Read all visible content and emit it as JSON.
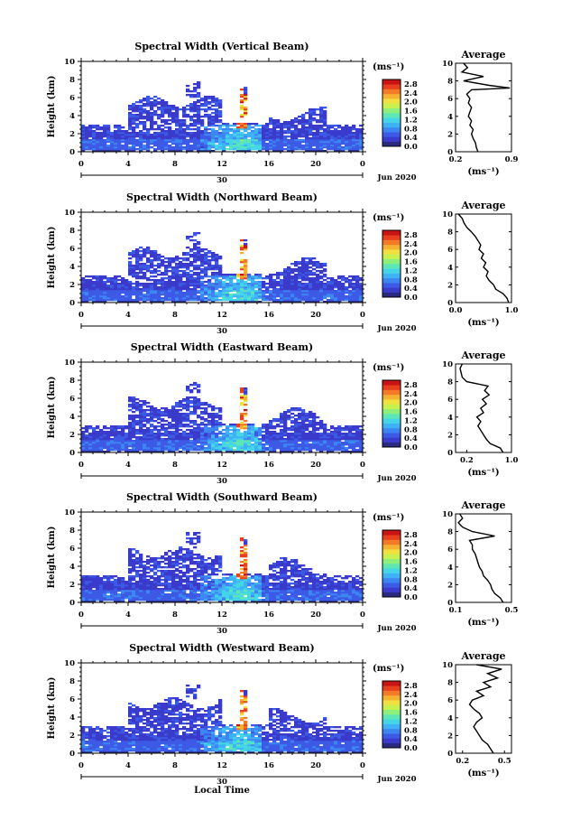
{
  "figure": {
    "xlabel": "Local Time",
    "date_label": "30",
    "month_label": "Jun 2020",
    "colorbar_unit": "(ms⁻¹)",
    "profile_title": "Average",
    "profile_xlabel": "(ms⁻¹)",
    "y_axis_label": "Height (km)"
  },
  "colors": {
    "colormap": [
      "#2a2a80",
      "#3a3acb",
      "#3c5ae6",
      "#3d86f2",
      "#3fb2f5",
      "#44d6e6",
      "#5ee6b4",
      "#8ef07a",
      "#c8f04e",
      "#f0e040",
      "#f5b232",
      "#f57a28",
      "#e8401e",
      "#c81414"
    ],
    "profile_line": "#000000"
  },
  "chart_data": [
    {
      "type": "heatmap",
      "title": "Spectral Width (Vertical Beam)",
      "x_ticks": [
        "0",
        "4",
        "8",
        "12",
        "16",
        "20",
        "0"
      ],
      "xlim": [
        0,
        24
      ],
      "y_ticks": [
        "0",
        "2",
        "4",
        "6",
        "8",
        "10"
      ],
      "ylim": [
        0,
        10
      ],
      "ylabel": "Height (km)",
      "colorbar": {
        "ticks": [
          "0.0",
          "0.4",
          "0.8",
          "1.2",
          "1.6",
          "2.0",
          "2.4",
          "2.8"
        ],
        "range": [
          0,
          3.0
        ]
      },
      "profile": {
        "title": "Average",
        "x_ticks": [
          "0.2",
          "0.9"
        ],
        "xlim": [
          0.2,
          0.9
        ],
        "heights_km": [
          0,
          0.5,
          1,
          1.5,
          2,
          2.5,
          3,
          3.5,
          4,
          4.5,
          5,
          5.5,
          6,
          6.5,
          7,
          7.2,
          7.5,
          8,
          8.5,
          9,
          9.5,
          10
        ],
        "values": [
          0.48,
          0.46,
          0.45,
          0.42,
          0.4,
          0.42,
          0.38,
          0.4,
          0.36,
          0.38,
          0.4,
          0.36,
          0.38,
          0.34,
          0.4,
          0.88,
          0.62,
          0.3,
          0.55,
          0.28,
          0.35,
          0.3
        ]
      }
    },
    {
      "type": "heatmap",
      "title": "Spectral Width (Northward Beam)",
      "x_ticks": [
        "0",
        "4",
        "8",
        "12",
        "16",
        "20",
        "0"
      ],
      "xlim": [
        0,
        24
      ],
      "y_ticks": [
        "0",
        "2",
        "4",
        "6",
        "8",
        "10"
      ],
      "ylim": [
        0,
        10
      ],
      "ylabel": "Height (km)",
      "colorbar": {
        "ticks": [
          "0.0",
          "0.4",
          "0.8",
          "1.2",
          "1.6",
          "2.0",
          "2.4",
          "2.8"
        ],
        "range": [
          0,
          3.0
        ]
      },
      "profile": {
        "title": "Average",
        "x_ticks": [
          "0.0",
          "1.0"
        ],
        "xlim": [
          0.0,
          1.0
        ],
        "heights_km": [
          0,
          0.5,
          1,
          1.5,
          2,
          2.5,
          3,
          3.5,
          4,
          4.5,
          5,
          5.5,
          6,
          6.5,
          7,
          7.5,
          8,
          8.5,
          9,
          9.5,
          10
        ],
        "values": [
          0.95,
          0.92,
          0.85,
          0.72,
          0.68,
          0.6,
          0.55,
          0.58,
          0.5,
          0.54,
          0.46,
          0.5,
          0.42,
          0.45,
          0.4,
          0.35,
          0.28,
          0.2,
          0.15,
          0.12,
          0.05
        ]
      }
    },
    {
      "type": "heatmap",
      "title": "Spectral Width (Eastward Beam)",
      "x_ticks": [
        "0",
        "4",
        "8",
        "12",
        "16",
        "20",
        "0"
      ],
      "xlim": [
        0,
        24
      ],
      "y_ticks": [
        "0",
        "2",
        "4",
        "6",
        "8",
        "10"
      ],
      "ylim": [
        0,
        10
      ],
      "ylabel": "Height (km)",
      "colorbar": {
        "ticks": [
          "0.0",
          "0.4",
          "0.8",
          "1.2",
          "1.6",
          "2.0",
          "2.4",
          "2.8"
        ],
        "range": [
          0,
          3.0
        ]
      },
      "profile": {
        "title": "Average",
        "x_ticks": [
          "0.2",
          "1.0"
        ],
        "xlim": [
          0.0,
          1.0
        ],
        "heights_km": [
          0,
          0.5,
          1,
          1.5,
          2,
          2.5,
          3,
          3.5,
          4,
          4.5,
          5,
          5.5,
          6,
          6.5,
          7,
          7.5,
          8,
          8.5,
          9,
          9.5,
          10
        ],
        "values": [
          0.85,
          0.8,
          0.62,
          0.55,
          0.5,
          0.45,
          0.4,
          0.45,
          0.38,
          0.5,
          0.45,
          0.55,
          0.48,
          0.6,
          0.52,
          0.58,
          0.2,
          0.12,
          0.1,
          0.08,
          0.12
        ]
      }
    },
    {
      "type": "heatmap",
      "title": "Spectral Width (Southward Beam)",
      "x_ticks": [
        "0",
        "4",
        "8",
        "12",
        "16",
        "20",
        "0"
      ],
      "xlim": [
        0,
        24
      ],
      "y_ticks": [
        "0",
        "2",
        "4",
        "6",
        "8",
        "10"
      ],
      "ylim": [
        0,
        10
      ],
      "ylabel": "Height (km)",
      "colorbar": {
        "ticks": [
          "0.0",
          "0.4",
          "0.8",
          "1.2",
          "1.6",
          "2.0",
          "2.4",
          "2.8"
        ],
        "range": [
          0,
          3.0
        ]
      },
      "profile": {
        "title": "Average",
        "x_ticks": [
          "0.1",
          "0.5"
        ],
        "xlim": [
          0.1,
          0.5
        ],
        "heights_km": [
          0,
          0.5,
          1,
          1.5,
          2,
          2.5,
          3,
          3.5,
          4,
          4.5,
          5,
          5.5,
          6,
          6.5,
          7,
          7.5,
          8,
          8.5,
          9,
          9.5,
          10
        ],
        "values": [
          0.44,
          0.42,
          0.38,
          0.36,
          0.35,
          0.33,
          0.3,
          0.29,
          0.27,
          0.26,
          0.25,
          0.24,
          0.22,
          0.22,
          0.2,
          0.38,
          0.22,
          0.15,
          0.12,
          0.15,
          0.13
        ]
      }
    },
    {
      "type": "heatmap",
      "title": "Spectral Width (Westward Beam)",
      "x_ticks": [
        "0",
        "4",
        "8",
        "12",
        "16",
        "20",
        "0"
      ],
      "xlim": [
        0,
        24
      ],
      "y_ticks": [
        "0",
        "2",
        "4",
        "6",
        "8",
        "10"
      ],
      "ylim": [
        0,
        10
      ],
      "ylabel": "Height (km)",
      "colorbar": {
        "ticks": [
          "0.0",
          "0.4",
          "0.8",
          "1.2",
          "1.6",
          "2.0",
          "2.4",
          "2.8"
        ],
        "range": [
          0,
          3.0
        ]
      },
      "profile": {
        "title": "Average",
        "x_ticks": [
          "0.2",
          "0.5"
        ],
        "xlim": [
          0.15,
          0.55
        ],
        "heights_km": [
          0,
          0.5,
          1,
          1.5,
          2,
          2.5,
          3,
          3.5,
          4,
          4.5,
          5,
          5.5,
          6,
          6.5,
          7,
          7.5,
          8,
          8.5,
          9,
          9.5,
          10
        ],
        "values": [
          0.42,
          0.4,
          0.38,
          0.34,
          0.32,
          0.3,
          0.28,
          0.3,
          0.34,
          0.32,
          0.28,
          0.25,
          0.27,
          0.35,
          0.3,
          0.4,
          0.35,
          0.45,
          0.38,
          0.48,
          0.3
        ]
      }
    }
  ]
}
